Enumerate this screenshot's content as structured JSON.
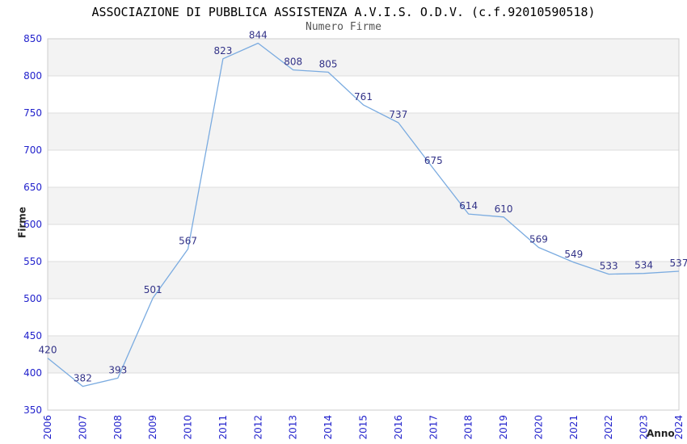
{
  "chart_data": {
    "type": "line",
    "title": "ASSOCIAZIONE DI PUBBLICA ASSISTENZA A.V.I.S. O.D.V. (c.f.92010590518)",
    "subtitle": "Numero Firme",
    "xlabel": "Anno",
    "ylabel": "Firme",
    "x": [
      "2006",
      "2007",
      "2008",
      "2009",
      "2010",
      "2011",
      "2012",
      "2013",
      "2014",
      "2015",
      "2016",
      "2017",
      "2018",
      "2019",
      "2020",
      "2021",
      "2022",
      "2023",
      "2024"
    ],
    "series": [
      {
        "name": "Numero Firme",
        "values": [
          420,
          382,
          393,
          501,
          567,
          823,
          844,
          808,
          805,
          761,
          737,
          675,
          614,
          610,
          569,
          549,
          533,
          534,
          537
        ]
      }
    ],
    "ylim": [
      350,
      850
    ],
    "ytick_step": 50,
    "yticks": [
      350,
      400,
      450,
      500,
      550,
      600,
      650,
      700,
      750,
      800,
      850
    ],
    "legend": "none",
    "grid": "horizontal-lines-with-alternating-bands",
    "data_labels_visible": true,
    "markers": "none",
    "colors": {
      "line": "#7aabe0",
      "tick_label": "#2222cc",
      "data_label": "#333388",
      "band": "#f3f3f3",
      "grid_line": "#dedede",
      "plot_border": "#cccccc",
      "title": "#000000",
      "subtitle": "#555555",
      "axis_title": "#222222",
      "background": "#ffffff"
    }
  }
}
